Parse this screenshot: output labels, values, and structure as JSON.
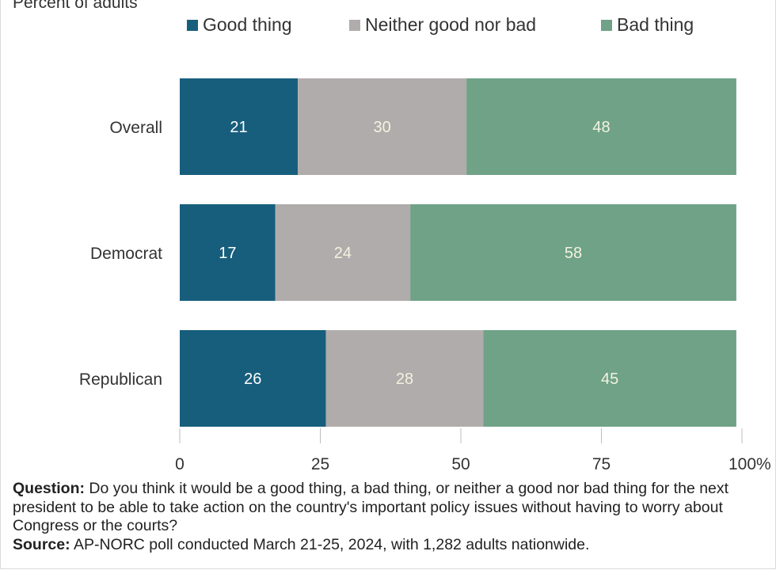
{
  "chart_data": {
    "type": "bar",
    "orientation": "horizontal",
    "stacked": true,
    "ylabel": "Percent of adults",
    "categories": [
      "Overall",
      "Democrat",
      "Republican"
    ],
    "series": [
      {
        "name": "Good thing",
        "values": [
          21,
          17,
          26
        ],
        "color": "#175e7d"
      },
      {
        "name": "Neither good nor bad",
        "values": [
          30,
          24,
          28
        ],
        "color": "#b0acab"
      },
      {
        "name": "Bad thing",
        "values": [
          48,
          58,
          45
        ],
        "color": "#6fa287"
      }
    ],
    "label_colors": [
      "#ffffff",
      "#f3f3e0",
      "#f3f3e0"
    ],
    "xlim": [
      0,
      100
    ],
    "xticks": [
      0,
      25,
      50,
      75,
      100
    ],
    "xtick_labels": [
      "0",
      "25",
      "50",
      "75",
      "100%"
    ],
    "grid": false,
    "legend_position": "top"
  },
  "notes": {
    "question_label": "Question:",
    "question_text": " Do you think it would be a good thing, a bad thing, or neither a good nor bad thing for the next president to be able to take action on the country's important policy issues without having to worry about Congress or the courts?",
    "source_label": "Source:",
    "source_text": " AP-NORC poll conducted March 21-25, 2024, with 1,282 adults nationwide."
  }
}
